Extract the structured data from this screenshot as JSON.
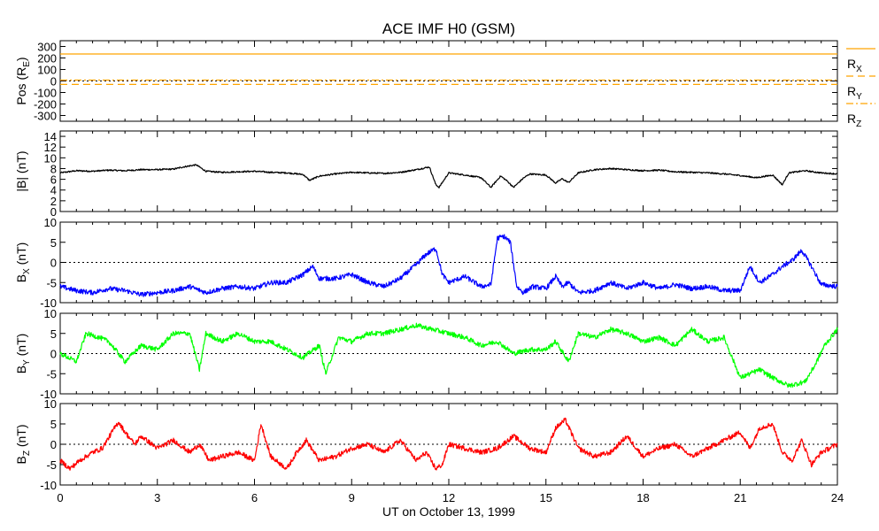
{
  "chart_data": {
    "type": "line",
    "title": "ACE IMF H0 (GSM)",
    "xlabel": "UT on October 13, 1999",
    "xlim": [
      0,
      24
    ],
    "xticks": [
      0,
      3,
      6,
      9,
      12,
      15,
      18,
      21,
      24
    ],
    "colors": {
      "pos_rx": "#ffa500",
      "pos_ry": "#ffa500",
      "pos_rz": "#ffa500",
      "btot": "#000000",
      "bx": "#0000ff",
      "by": "#00ff00",
      "bz": "#ff0000"
    },
    "panels": [
      {
        "id": "pos",
        "ylabel": "Pos (R",
        "ylabel_sub": "E",
        "ylabel_tail": ")",
        "ylim": [
          -350,
          350
        ],
        "yticks": [
          300,
          200,
          100,
          0,
          -100,
          -200,
          -300
        ],
        "zero_line": true,
        "legend": [
          {
            "label": "R",
            "sub": "X",
            "dash": "solid"
          },
          {
            "label": "R",
            "sub": "Y",
            "dash": "dashed"
          },
          {
            "label": "R",
            "sub": "Z",
            "dash": "dashdot"
          }
        ],
        "series": [
          {
            "name": "R_X",
            "color": "#ffa500",
            "dash": "solid",
            "x": [
              0,
              24
            ],
            "y": [
              235,
              235
            ]
          },
          {
            "name": "R_Y",
            "color": "#ffa500",
            "dash": "dashed",
            "x": [
              0,
              24
            ],
            "y": [
              -30,
              -30
            ]
          },
          {
            "name": "R_Z",
            "color": "#ffa500",
            "dash": "dashdot",
            "x": [
              0,
              24
            ],
            "y": [
              8,
              8
            ]
          }
        ]
      },
      {
        "id": "btot",
        "ylabel": "|B| (nT)",
        "ylim": [
          0,
          15
        ],
        "yticks": [
          0,
          2,
          4,
          6,
          8,
          10,
          12,
          14
        ],
        "zero_line": false,
        "series": [
          {
            "name": "|B|",
            "color": "#000000",
            "x": [
              0,
              0.5,
              1,
              1.5,
              2,
              2.5,
              3,
              3.5,
              3.8,
              4.2,
              4.5,
              5,
              5.5,
              6,
              6.5,
              7,
              7.5,
              7.7,
              8,
              8.5,
              9,
              9.5,
              10,
              10.5,
              11,
              11.4,
              11.6,
              11.7,
              12,
              12.5,
              13,
              13.3,
              13.6,
              13.8,
              14,
              14.3,
              14.5,
              15,
              15.3,
              15.5,
              15.7,
              16,
              16.5,
              17,
              17.5,
              18,
              18.5,
              19,
              19.5,
              20,
              20.5,
              21,
              21.5,
              22,
              22.3,
              22.5,
              23,
              23.5,
              24
            ],
            "y": [
              7.2,
              7.6,
              7.5,
              7.7,
              7.6,
              7.8,
              7.8,
              7.9,
              8.3,
              8.7,
              7.5,
              7.3,
              7.4,
              7.5,
              7.3,
              7.2,
              6.9,
              5.8,
              6.6,
              7.0,
              7.3,
              7.2,
              7.1,
              7.3,
              7.8,
              8.3,
              5.0,
              4.5,
              7.2,
              6.8,
              6.3,
              4.5,
              6.6,
              5.7,
              4.5,
              6.2,
              7.0,
              6.8,
              5.3,
              6.1,
              5.4,
              7.2,
              7.8,
              8.0,
              7.8,
              7.6,
              7.7,
              7.4,
              7.3,
              7.2,
              7.0,
              6.7,
              6.3,
              6.8,
              5.0,
              7.2,
              7.6,
              7.2,
              7.0
            ]
          }
        ]
      },
      {
        "id": "bx",
        "ylabel": "B",
        "ylabel_sub": "X",
        "ylabel_tail": " (nT)",
        "ylim": [
          -10,
          10
        ],
        "yticks": [
          -10,
          -5,
          0,
          5,
          10
        ],
        "zero_line": true,
        "series": [
          {
            "name": "B_X",
            "color": "#0000ff",
            "x": [
              0,
              0.5,
              1,
              1.5,
              2,
              2.5,
              3,
              3.5,
              4,
              4.5,
              5,
              5.5,
              6,
              6.5,
              7,
              7.5,
              7.8,
              8,
              8.5,
              9,
              9.5,
              10,
              10.5,
              11,
              11.3,
              11.6,
              11.8,
              12,
              12.5,
              13,
              13.3,
              13.5,
              13.7,
              13.9,
              14.1,
              14.3,
              14.6,
              15,
              15.3,
              15.5,
              15.7,
              16,
              16.5,
              17,
              17.5,
              18,
              18.5,
              19,
              19.5,
              20,
              20.5,
              21,
              21.3,
              21.6,
              22,
              22.3,
              22.6,
              22.9,
              23.2,
              23.5,
              24
            ],
            "y": [
              -6,
              -7,
              -7.5,
              -6.5,
              -7,
              -8,
              -7.5,
              -7,
              -6,
              -7.5,
              -6.5,
              -6,
              -6.5,
              -5,
              -5,
              -3,
              -1,
              -4,
              -4,
              -3,
              -5,
              -6,
              -4,
              -0.5,
              2,
              3.5,
              -3,
              -5,
              -3.5,
              -6,
              -5.5,
              6,
              6.5,
              5,
              -6,
              -7.5,
              -6,
              -6.5,
              -3.5,
              -6,
              -5,
              -7.5,
              -7,
              -5,
              -6.5,
              -5,
              -6.5,
              -5.5,
              -6.5,
              -6,
              -7,
              -7,
              -1,
              -5,
              -3,
              -1,
              0.5,
              3,
              -1,
              -5.5,
              -6
            ]
          }
        ]
      },
      {
        "id": "by",
        "ylabel": "B",
        "ylabel_sub": "Y",
        "ylabel_tail": " (nT)",
        "ylim": [
          -10,
          10
        ],
        "yticks": [
          -10,
          -5,
          0,
          5,
          10
        ],
        "zero_line": true,
        "series": [
          {
            "name": "B_Y",
            "color": "#00ff00",
            "x": [
              0,
              0.5,
              0.8,
              1.2,
              1.5,
              2,
              2.5,
              3,
              3.5,
              4,
              4.3,
              4.5,
              5,
              5.5,
              6,
              6.5,
              7,
              7.5,
              8,
              8.2,
              8.6,
              9,
              9.5,
              10,
              10.5,
              11,
              11.5,
              12,
              12.5,
              13,
              13.5,
              14,
              14.5,
              15,
              15.3,
              15.7,
              16,
              16.5,
              17,
              17.5,
              18,
              18.5,
              19,
              19.5,
              20,
              20.5,
              21,
              21.3,
              21.6,
              22,
              22.5,
              23,
              23.3,
              23.6,
              24
            ],
            "y": [
              0,
              -2,
              5,
              4,
              3,
              -2,
              2,
              1,
              5,
              5,
              -4,
              5,
              3,
              5,
              3,
              3,
              1,
              -1,
              2,
              -5,
              4,
              3,
              5,
              5,
              6,
              7,
              6,
              5,
              4,
              2,
              3,
              0,
              1,
              1,
              3,
              -2,
              5,
              4,
              6,
              5,
              3,
              4,
              2,
              6,
              3,
              4,
              -6,
              -5,
              -4,
              -6,
              -8,
              -7,
              -3,
              2,
              6
            ]
          }
        ]
      },
      {
        "id": "bz",
        "ylabel": "B",
        "ylabel_sub": "Z",
        "ylabel_tail": " (nT)",
        "ylim": [
          -10,
          10
        ],
        "yticks": [
          -10,
          -5,
          0,
          5,
          10
        ],
        "zero_line": true,
        "series": [
          {
            "name": "B_Z",
            "color": "#ff0000",
            "x": [
              0,
              0.3,
              0.6,
              1,
              1.3,
              1.6,
              1.8,
              2,
              2.3,
              2.5,
              3,
              3.5,
              4,
              4.3,
              4.6,
              5,
              5.5,
              6,
              6.2,
              6.5,
              7,
              7.3,
              7.6,
              8,
              8.5,
              9,
              9.5,
              10,
              10.5,
              11,
              11.3,
              11.6,
              11.8,
              12,
              12.5,
              13,
              13.5,
              14,
              14.5,
              15,
              15.3,
              15.6,
              16,
              16.5,
              17,
              17.5,
              18,
              18.5,
              19,
              19.5,
              20,
              20.5,
              21,
              21.3,
              21.6,
              22,
              22.3,
              22.6,
              22.9,
              23.2,
              23.5,
              24
            ],
            "y": [
              -4,
              -6,
              -4,
              -2,
              -1,
              3,
              5.5,
              3,
              0,
              2,
              -1,
              1,
              -2,
              0,
              -4,
              -3,
              -2,
              -4,
              5,
              -3,
              -6,
              -2,
              1,
              -4,
              -3,
              -1,
              0,
              -2,
              1,
              -4,
              -2,
              -6,
              -5,
              0,
              -1,
              -2,
              -1,
              2,
              -1,
              -2,
              4,
              6,
              -1,
              -3,
              -2,
              2,
              -3,
              -1,
              0,
              -3,
              -1,
              1,
              3,
              -1,
              4,
              5,
              -2,
              -4,
              1,
              -5,
              -2,
              0
            ]
          }
        ]
      }
    ]
  }
}
